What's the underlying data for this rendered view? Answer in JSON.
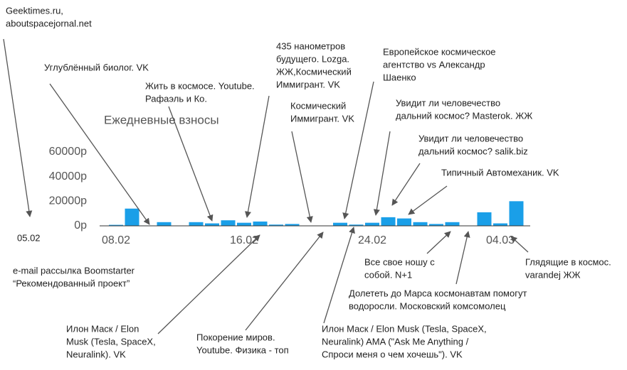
{
  "chart_data": {
    "type": "bar",
    "title": "Ежедневные взносы",
    "categories": [
      "08.02",
      null,
      null,
      null,
      null,
      null,
      null,
      null,
      "16.02",
      null,
      null,
      null,
      null,
      null,
      null,
      null,
      "24.02",
      null,
      null,
      null,
      null,
      null,
      null,
      null,
      "04.03",
      null
    ],
    "values": [
      800,
      14000,
      300,
      3000,
      0,
      3000,
      2000,
      4500,
      2500,
      3500,
      1000,
      1500,
      0,
      0,
      2500,
      1000,
      2500,
      7000,
      6000,
      3000,
      1500,
      3000,
      0,
      11000,
      2000,
      20000
    ],
    "color": "#1a9fe8",
    "ylim": [
      0,
      60000
    ],
    "yticks": [
      {
        "value": 0,
        "label": "0р"
      },
      {
        "value": 20000,
        "label": "20000р"
      },
      {
        "value": 40000,
        "label": "40000р"
      },
      {
        "value": 60000,
        "label": "60000р"
      }
    ],
    "grid": false,
    "annotations": [
      {
        "lines": [
          "Geektimes.ru,",
          "aboutspacejornal.net"
        ]
      },
      {
        "lines": [
          "05.02"
        ]
      },
      {
        "lines": [
          "Углублённый биолог. VK"
        ]
      },
      {
        "lines": [
          "Жить в космосе. Youtube.",
          "Рафаэль и Ко."
        ]
      },
      {
        "lines": [
          "435 нанометров",
          "будущего. Lozga.",
          "ЖЖ,Космический",
          "Иммигрант. VK"
        ]
      },
      {
        "lines": [
          "Космический",
          "Иммигрант. VK"
        ]
      },
      {
        "lines": [
          "Европейское космическое",
          "агентство vs Александр",
          "Шаенко"
        ]
      },
      {
        "lines": [
          "Увидит ли человечество",
          "дальний космос? Masterok. ЖЖ"
        ]
      },
      {
        "lines": [
          "Увидит ли человечество",
          "дальний космос? salik.biz"
        ]
      },
      {
        "lines": [
          "Типичный Автомеханик. VK"
        ]
      },
      {
        "lines": [
          "Все свое ношу с",
          "собой. N+1"
        ]
      },
      {
        "lines": [
          "Долететь до Марса космонавтам помогут",
          "водоросли. Московский комсомолец"
        ]
      },
      {
        "lines": [
          "Глядящие в космос.",
          "varandej ЖЖ"
        ]
      },
      {
        "lines": [
          "e-mail рассылка Boomstarter",
          "“Рекомендованный проект”"
        ]
      },
      {
        "lines": [
          "Илон Маск / Elon",
          "Musk (Tesla, SpaceX,",
          "Neuralink). VK"
        ]
      },
      {
        "lines": [
          "Покорение миров.",
          "Youtube. Физика - топ"
        ]
      },
      {
        "lines": [
          "Илон Маск / Elon Musk (Tesla, SpaceX,",
          "Neuralink) AMA (\"Ask Me Anything /",
          "Спроси меня о чем хочешь\"). VK"
        ]
      }
    ]
  }
}
